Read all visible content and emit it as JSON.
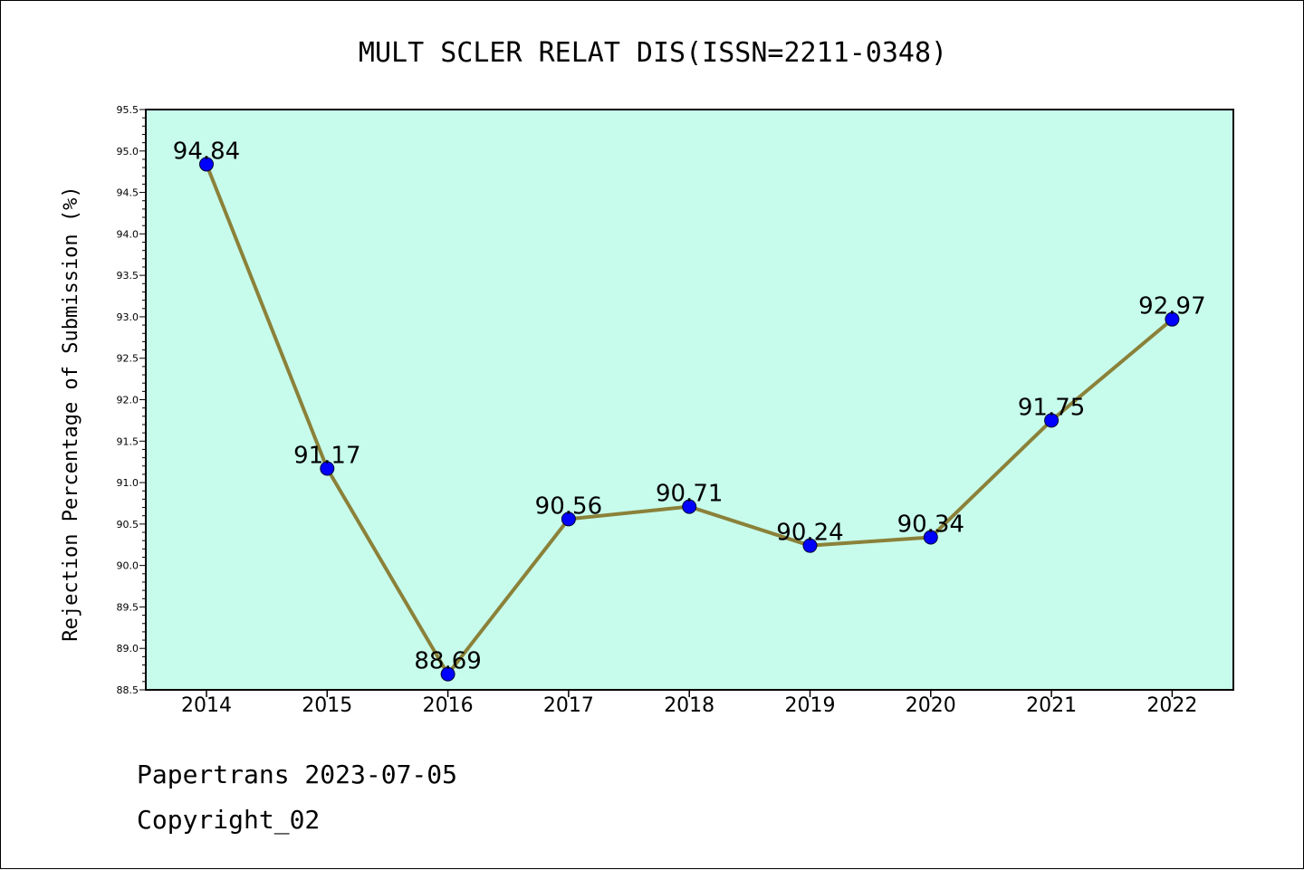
{
  "chart_data": {
    "type": "line",
    "title": "MULT SCLER RELAT DIS(ISSN=2211-0348)",
    "xlabel": "",
    "ylabel": "Rejection Percentage of Submission (%)",
    "categories": [
      "2014",
      "2015",
      "2016",
      "2017",
      "2018",
      "2019",
      "2020",
      "2021",
      "2022"
    ],
    "values": [
      94.84,
      91.17,
      88.69,
      90.56,
      90.71,
      90.24,
      90.34,
      91.75,
      92.97
    ],
    "data_labels": [
      "94.84",
      "91.17",
      "88.69",
      "90.56",
      "90.71",
      "90.24",
      "90.34",
      "91.75",
      "92.97"
    ],
    "ylim": [
      88.5,
      95.5
    ],
    "yticks": [
      "88.5",
      "89.0",
      "89.5",
      "90.0",
      "90.5",
      "91.0",
      "91.5",
      "92.0",
      "92.5",
      "93.0",
      "93.5",
      "94.0",
      "94.5",
      "95.0",
      "95.5"
    ],
    "grid": false,
    "colors": {
      "plot_background": "#c7fcec",
      "line": "#8b8139",
      "marker": "#0000ff"
    }
  },
  "footer": {
    "line1": "Papertrans 2023-07-05",
    "line2": "Copyright_02"
  }
}
